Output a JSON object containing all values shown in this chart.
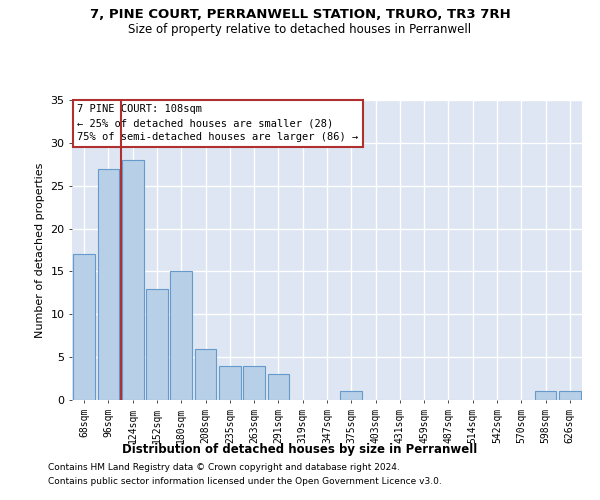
{
  "title": "7, PINE COURT, PERRANWELL STATION, TRURO, TR3 7RH",
  "subtitle": "Size of property relative to detached houses in Perranwell",
  "xlabel": "Distribution of detached houses by size in Perranwell",
  "ylabel": "Number of detached properties",
  "categories": [
    "68sqm",
    "96sqm",
    "124sqm",
    "152sqm",
    "180sqm",
    "208sqm",
    "235sqm",
    "263sqm",
    "291sqm",
    "319sqm",
    "347sqm",
    "375sqm",
    "403sqm",
    "431sqm",
    "459sqm",
    "487sqm",
    "514sqm",
    "542sqm",
    "570sqm",
    "598sqm",
    "626sqm"
  ],
  "values": [
    17,
    27,
    28,
    13,
    15,
    6,
    4,
    4,
    3,
    0,
    0,
    1,
    0,
    0,
    0,
    0,
    0,
    0,
    0,
    1,
    1
  ],
  "bar_color": "#b8cfe8",
  "bar_edge_color": "#6699cc",
  "background_color": "#dde6f2",
  "grid_color": "#ffffff",
  "vline_x": 1.5,
  "vline_color": "#b03030",
  "annotation_text": "7 PINE COURT: 108sqm\n← 25% of detached houses are smaller (28)\n75% of semi-detached houses are larger (86) →",
  "annotation_box_facecolor": "#ffffff",
  "annotation_box_edgecolor": "#b03030",
  "ylim": [
    0,
    35
  ],
  "yticks": [
    0,
    5,
    10,
    15,
    20,
    25,
    30,
    35
  ],
  "footer_line1": "Contains HM Land Registry data © Crown copyright and database right 2024.",
  "footer_line2": "Contains public sector information licensed under the Open Government Licence v3.0."
}
